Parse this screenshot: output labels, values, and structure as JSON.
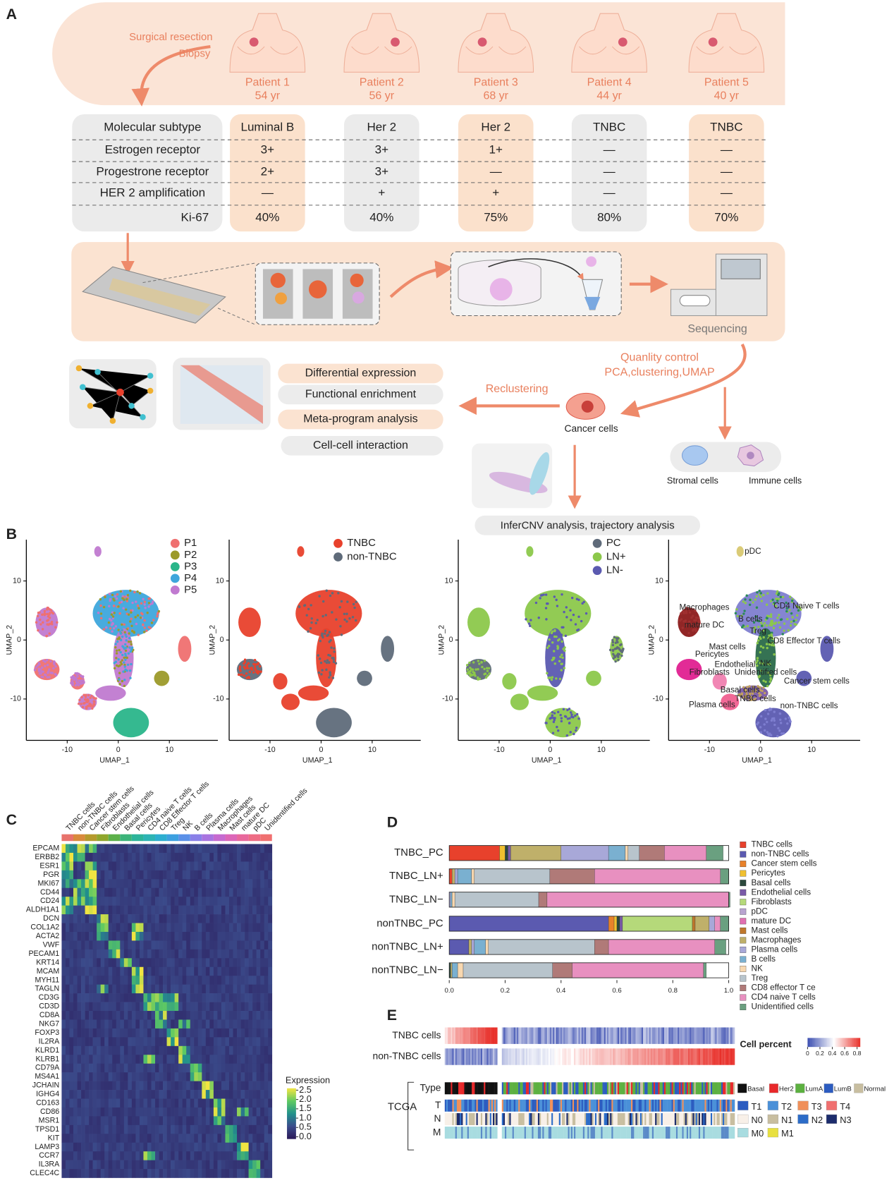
{
  "panel_labels": [
    "A",
    "B",
    "C",
    "D",
    "E"
  ],
  "overview": {
    "resection": [
      "Surgical resection",
      "Biopsy"
    ],
    "patients": [
      {
        "name": "Patient 1",
        "age": "54 yr"
      },
      {
        "name": "Patient 2",
        "age": "56 yr"
      },
      {
        "name": "Patient 3",
        "age": "68 yr"
      },
      {
        "name": "Patient 4",
        "age": "44 yr"
      },
      {
        "name": "Patient 5",
        "age": "40 yr"
      }
    ],
    "table": {
      "row_headers": [
        "Molecular subtype",
        "Estrogen receptor",
        "Progestrone receptor",
        "HER 2 amplification",
        "Ki-67"
      ],
      "columns": [
        [
          "Luminal B",
          "3+",
          "2+",
          "—",
          "40%"
        ],
        [
          "Her 2",
          "3+",
          "3+",
          "+",
          "40%"
        ],
        [
          "Her 2",
          "1+",
          "—",
          "+",
          "75%"
        ],
        [
          "TNBC",
          "—",
          "—",
          "—",
          "80%"
        ],
        [
          "TNBC",
          "—",
          "—",
          "—",
          "70%"
        ]
      ]
    },
    "sequencing": "Sequencing",
    "quality_control": [
      "Quanlity control",
      "PCA,clustering,UMAP"
    ],
    "reclustering": "Reclustering",
    "cancer_cells": "Cancer cells",
    "analyses": [
      "Differential expression",
      "Functional enrichment",
      "Meta-program analysis",
      "Cell-cell interaction"
    ],
    "stromal_cells": "Stromal cells",
    "immune_cells": "Immune cells",
    "downstream": "InferCNV analysis, trajectory analysis"
  },
  "chart_data": [
    {
      "type": "scatter",
      "xlabel": "UMAP_1",
      "ylabel": "UMAP_2",
      "xlim": [
        -18,
        19.5
      ],
      "ylim": [
        -17,
        17
      ],
      "xticks": [
        -10,
        0,
        10
      ],
      "yticks": [
        -10,
        0,
        10
      ],
      "series": [
        {
          "name": "P1",
          "color": "#ef7070"
        },
        {
          "name": "P2",
          "color": "#9c9a2a"
        },
        {
          "name": "P3",
          "color": "#2ab58a"
        },
        {
          "name": "P4",
          "color": "#3ea6dc"
        },
        {
          "name": "P5",
          "color": "#c07ad0"
        }
      ]
    },
    {
      "type": "scatter",
      "xlabel": "UMAP_1",
      "ylabel": "UMAP_2",
      "xlim": [
        -18,
        19.5
      ],
      "ylim": [
        -17,
        17
      ],
      "xticks": [
        -10,
        0,
        10
      ],
      "yticks": [
        -10,
        0,
        10
      ],
      "series": [
        {
          "name": "TNBC",
          "color": "#e8412c"
        },
        {
          "name": "non-TNBC",
          "color": "#5f6b7a"
        }
      ]
    },
    {
      "type": "scatter",
      "xlabel": "UMAP_1",
      "ylabel": "UMAP_2",
      "xlim": [
        -18,
        19.5
      ],
      "ylim": [
        -17,
        17
      ],
      "xticks": [
        -10,
        0,
        10
      ],
      "yticks": [
        -10,
        0,
        10
      ],
      "series": [
        {
          "name": "PC",
          "color": "#5f6b7a"
        },
        {
          "name": "LN+",
          "color": "#8cc84b"
        },
        {
          "name": "LN-",
          "color": "#5b5ab0"
        }
      ]
    },
    {
      "type": "scatter",
      "xlabel": "UMAP_1",
      "ylabel": "UMAP_2",
      "xlim": [
        -18,
        19.5
      ],
      "ylim": [
        -17,
        17
      ],
      "xticks": [
        -10,
        0,
        10
      ],
      "yticks": [
        -10,
        0,
        10
      ],
      "annotations": [
        "pDC",
        "Macrophages",
        "mature DC",
        "B cells",
        "CD4 Naive T cells",
        "Treg",
        "CD8 Effector T cells",
        "Mast cells",
        "NK",
        "Pericytes",
        "Endothelial",
        "Fibroblasts",
        "Unidentified cells",
        "Cancer stem cells",
        "Basal cells",
        "TNBC cells",
        "Plasma cells",
        "non-TNBC cells"
      ]
    },
    {
      "type": "heatmap",
      "columns": [
        "TNBC cells",
        "non-TNBC cells",
        "Cancer stem cells",
        "Fibroblasts",
        "Endothelial cells",
        "Basal cells",
        "Pericytes",
        "CD4 naive T cells",
        "CD8 Effector T cells",
        "Treg",
        "NK",
        "B cells",
        "Plasma cells",
        "Macrophages",
        "Mast cells",
        "mature DC",
        "pDC",
        "Unidentified cells"
      ],
      "column_colors": [
        "#e8736c",
        "#d98a3c",
        "#b59a2c",
        "#8fa62c",
        "#5cb04a",
        "#3cb47a",
        "#2cb49a",
        "#2cb4b4",
        "#2caed0",
        "#3ca0e0",
        "#5a90e8",
        "#8a80e8",
        "#a874e0",
        "#c66ad0",
        "#dc66b8",
        "#e8689c",
        "#ee6c84",
        "#f07070"
      ],
      "rows": [
        "EPCAM",
        "ERBB2",
        "ESR1",
        "PGR",
        "MKI67",
        "CD44",
        "CD24",
        "ALDH1A1",
        "DCN",
        "COL1A2",
        "ACTA2",
        "VWF",
        "PECAM1",
        "KRT14",
        "MCAM",
        "MYH11",
        "TAGLN",
        "CD3G",
        "CD3D",
        "CD8A",
        "NKG7",
        "FOXP3",
        "IL2RA",
        "KLRD1",
        "KLRB1",
        "CD79A",
        "MS4A1",
        "JCHAIN",
        "IGHG4",
        "CD163",
        "CD86",
        "MSR1",
        "TPSD1",
        "KIT",
        "LAMP3",
        "CCR7",
        "IL3RA",
        "CLEC4C"
      ],
      "colorbar": {
        "title": "Expression",
        "clim": [
          -0.1,
          2.6
        ],
        "ticks": [
          {
            "value": 0,
            "label": "0.0"
          },
          0.5,
          {
            "value": 1,
            "label": "1.0"
          },
          1.5,
          {
            "value": 2,
            "label": "2.0"
          },
          2.5
        ],
        "colors": [
          "#2a1858",
          "#3b4c8c",
          "#21918c",
          "#5ec962",
          "#f0e442"
        ]
      }
    },
    {
      "type": "bar",
      "orientation": "horizontal",
      "stacked": true,
      "categories": [
        "TNBC_PC",
        "TNBC_LN+",
        "TNBC_LN−",
        "nonTNBC_PC",
        "nonTNBC_LN+",
        "nonTNBC_LN−"
      ],
      "xlim": [
        0,
        1
      ],
      "xticks": [
        {
          "value": 0,
          "label": "0.0"
        },
        0.2,
        0.4,
        0.6,
        0.8,
        {
          "value": 1,
          "label": "1.0"
        }
      ],
      "series": [
        {
          "name": "TNBC cells",
          "color": "#e8412c",
          "values": [
            0.18,
            0.01,
            0,
            0,
            0,
            0
          ]
        },
        {
          "name": "non-TNBC cells",
          "color": "#5b5ab0",
          "values": [
            0,
            0,
            0,
            0.57,
            0.07,
            0
          ]
        },
        {
          "name": "Cancer stem cells",
          "color": "#e8822a",
          "values": [
            0,
            0,
            0,
            0.02,
            0,
            0
          ]
        },
        {
          "name": "Pericytes",
          "color": "#f0c030",
          "values": [
            0.02,
            0,
            0,
            0.01,
            0,
            0
          ]
        },
        {
          "name": "Basal cells",
          "color": "#2c4a3c",
          "values": [
            0.01,
            0,
            0,
            0.01,
            0,
            0.005
          ]
        },
        {
          "name": "Endothelial cells",
          "color": "#7a5aa8",
          "values": [
            0.01,
            0,
            0,
            0.01,
            0,
            0
          ]
        },
        {
          "name": "Fibroblasts",
          "color": "#b5d97a",
          "values": [
            0,
            0,
            0,
            0.25,
            0,
            0
          ]
        },
        {
          "name": "pDC",
          "color": "#b8a4d0",
          "values": [
            0,
            0,
            0,
            0,
            0,
            0
          ]
        },
        {
          "name": "mature DC",
          "color": "#e070b0",
          "values": [
            0,
            0,
            0,
            0,
            0,
            0
          ]
        },
        {
          "name": "Mast cells",
          "color": "#c0782c",
          "values": [
            0,
            0,
            0,
            0.01,
            0,
            0
          ]
        },
        {
          "name": "Macrophages",
          "color": "#bfb06a",
          "values": [
            0.18,
            0.01,
            0,
            0.05,
            0.01,
            0.005
          ]
        },
        {
          "name": "Plasma cells",
          "color": "#a8a8d8",
          "values": [
            0.17,
            0.01,
            0.005,
            0.02,
            0.01,
            0
          ]
        },
        {
          "name": "B cells",
          "color": "#7ab0d0",
          "values": [
            0.06,
            0.05,
            0.005,
            0,
            0.04,
            0.02
          ]
        },
        {
          "name": "NK",
          "color": "#f8d8b0",
          "values": [
            0.01,
            0.01,
            0.01,
            0,
            0.01,
            0.02
          ]
        },
        {
          "name": "Treg",
          "color": "#b8c4cc",
          "values": [
            0.04,
            0.27,
            0.3,
            0,
            0.38,
            0.32
          ]
        },
        {
          "name": "CD8 effector T ce",
          "color": "#b07a78",
          "values": [
            0.09,
            0.16,
            0.03,
            0,
            0.05,
            0.07
          ]
        },
        {
          "name": "CD4 naive T cells",
          "color": "#e890c0",
          "values": [
            0.15,
            0.45,
            0.65,
            0.02,
            0.38,
            0.47
          ]
        },
        {
          "name": "Unidentified cells",
          "color": "#6aa080",
          "values": [
            0.06,
            0.03,
            0.005,
            0.03,
            0.04,
            0.01
          ]
        }
      ]
    },
    {
      "type": "heatmap-strips",
      "rows": [
        "TNBC cells",
        "non-TNBC cells"
      ],
      "colorbar": {
        "title": "Cell percent",
        "clim": [
          0,
          0.85
        ],
        "ticks": [
          0,
          0.2,
          0.4,
          0.6,
          0.8
        ],
        "colors": [
          "#3a4db0",
          "#ffffff",
          "#e8302a"
        ]
      },
      "tcga": {
        "label": "TCGA",
        "tracks": [
          {
            "name": "Type",
            "legend": [
              {
                "name": "Basal",
                "color": "#111111"
              },
              {
                "name": "Her2",
                "color": "#e8282a"
              },
              {
                "name": "LumA",
                "color": "#5cb040"
              },
              {
                "name": "LumB",
                "color": "#2c5cc0"
              },
              {
                "name": "Normal",
                "color": "#c8bea0"
              }
            ]
          },
          {
            "name": "T",
            "legend": [
              {
                "name": "T1",
                "color": "#2c5cc0"
              },
              {
                "name": "T2",
                "color": "#4a90d8"
              },
              {
                "name": "T3",
                "color": "#f0905a"
              },
              {
                "name": "T4",
                "color": "#f07070"
              }
            ]
          },
          {
            "name": "N",
            "legend": [
              {
                "name": "N0",
                "color": "#f8f0e8"
              },
              {
                "name": "N1",
                "color": "#c8bea0"
              },
              {
                "name": "N2",
                "color": "#2c6cc8"
              },
              {
                "name": "N3",
                "color": "#1c2c6c"
              }
            ]
          },
          {
            "name": "M",
            "legend": [
              {
                "name": "M0",
                "color": "#a8dce0"
              },
              {
                "name": "M1",
                "color": "#e8e040"
              }
            ]
          }
        ]
      }
    }
  ]
}
